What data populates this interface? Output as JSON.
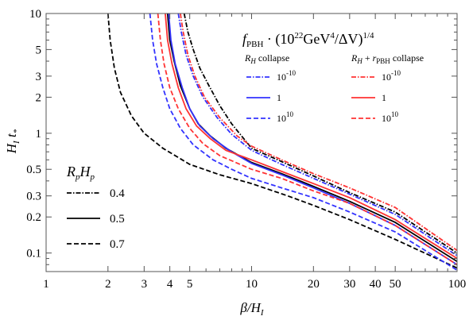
{
  "chart_data": {
    "type": "line",
    "xlabel": "β/H_I",
    "ylabel": "H_I t_*",
    "xscale": "log",
    "yscale": "log",
    "xlim": [
      1,
      100
    ],
    "ylim": [
      0.07,
      10
    ],
    "grid": false,
    "x_ticks": [
      1,
      2,
      3,
      4,
      5,
      10,
      20,
      30,
      40,
      50,
      100
    ],
    "x_tick_labels": [
      "1",
      "2",
      "3",
      "4",
      "5",
      "10",
      "20",
      "30",
      "40",
      "50",
      "100"
    ],
    "y_ticks": [
      10,
      5,
      3,
      2,
      1,
      0.5,
      0.3,
      0.2,
      0.1
    ],
    "y_tick_labels": [
      "10",
      "5",
      "3",
      "2",
      "1",
      "0.5",
      "0.3",
      "0.2",
      "0.1"
    ],
    "legend_top": {
      "title": "f_PBH · (10^22 GeV^4/ΔV)^1/4",
      "col1_header": "R_H collapse",
      "col2_header": "R_H + r_PBH collapse",
      "rows": [
        "10^-10",
        "1",
        "10^10"
      ]
    },
    "legend_left": {
      "title": "R_p H_p",
      "entries": [
        "0.4",
        "0.5",
        "0.7"
      ]
    },
    "series": [
      {
        "color": "#000000",
        "dash": "dashdot",
        "x": [
          4.7,
          4.9,
          5.2,
          5.6,
          6.2,
          7.0,
          8.0,
          10,
          14,
          20,
          30,
          50,
          100
        ],
        "y": [
          10,
          7,
          5,
          3.5,
          2.5,
          1.7,
          1.2,
          0.75,
          0.58,
          0.44,
          0.32,
          0.22,
          0.1
        ]
      },
      {
        "color": "#000000",
        "dash": "solid",
        "x": [
          3.9,
          4.0,
          4.2,
          4.5,
          5.0,
          5.5,
          6.3,
          7.5,
          10,
          14,
          20,
          30,
          50,
          100
        ],
        "y": [
          10,
          6,
          4,
          2.5,
          1.6,
          1.2,
          0.95,
          0.75,
          0.57,
          0.46,
          0.36,
          0.27,
          0.18,
          0.085
        ]
      },
      {
        "color": "#000000",
        "dash": "dashed",
        "x": [
          2.0,
          2.05,
          2.15,
          2.3,
          2.6,
          3.0,
          3.7,
          5.0,
          7.0,
          10,
          15,
          20,
          30,
          50,
          100
        ],
        "y": [
          10,
          6,
          3.5,
          2.2,
          1.4,
          1.0,
          0.75,
          0.55,
          0.45,
          0.38,
          0.3,
          0.25,
          0.19,
          0.13,
          0.075
        ]
      },
      {
        "color": "#3333ff",
        "dash": "dashdot",
        "x": [
          4.4,
          4.55,
          4.8,
          5.2,
          5.8,
          6.8,
          8.0,
          10,
          14,
          20,
          30,
          50,
          100
        ],
        "y": [
          10,
          7,
          4.5,
          3.0,
          2.0,
          1.35,
          0.98,
          0.72,
          0.55,
          0.42,
          0.31,
          0.21,
          0.095
        ]
      },
      {
        "color": "#3333ff",
        "dash": "solid",
        "x": [
          3.95,
          4.05,
          4.25,
          4.6,
          5.0,
          5.6,
          6.5,
          8.0,
          10,
          14,
          20,
          30,
          50,
          100
        ],
        "y": [
          10,
          6,
          3.8,
          2.4,
          1.6,
          1.15,
          0.9,
          0.7,
          0.56,
          0.45,
          0.35,
          0.26,
          0.17,
          0.08
        ]
      },
      {
        "color": "#3333ff",
        "dash": "dashed",
        "x": [
          3.2,
          3.3,
          3.45,
          3.7,
          4.0,
          4.5,
          5.2,
          6.5,
          8.0,
          10,
          14,
          20,
          30,
          50,
          100
        ],
        "y": [
          10,
          6,
          3.8,
          2.4,
          1.6,
          1.1,
          0.8,
          0.6,
          0.5,
          0.42,
          0.35,
          0.29,
          0.22,
          0.15,
          0.072
        ]
      },
      {
        "color": "#ff3333",
        "dash": "dashdot",
        "x": [
          4.5,
          4.65,
          4.9,
          5.3,
          5.9,
          7.0,
          8.5,
          10,
          14,
          20,
          30,
          50,
          100
        ],
        "y": [
          10,
          7,
          4.5,
          3.0,
          2.0,
          1.35,
          0.95,
          0.78,
          0.6,
          0.46,
          0.35,
          0.24,
          0.105
        ]
      },
      {
        "color": "#ff3333",
        "dash": "solid",
        "x": [
          3.8,
          3.9,
          4.1,
          4.4,
          4.8,
          5.4,
          6.3,
          7.5,
          10,
          14,
          20,
          30,
          50,
          100
        ],
        "y": [
          10,
          6,
          3.8,
          2.4,
          1.6,
          1.15,
          0.9,
          0.72,
          0.6,
          0.48,
          0.38,
          0.29,
          0.19,
          0.09
        ]
      },
      {
        "color": "#ff3333",
        "dash": "dashed",
        "x": [
          3.5,
          3.6,
          3.75,
          4.0,
          4.4,
          5.0,
          5.8,
          7.0,
          10,
          14,
          20,
          30,
          50,
          100
        ],
        "y": [
          10,
          6,
          3.8,
          2.4,
          1.6,
          1.1,
          0.82,
          0.65,
          0.5,
          0.42,
          0.33,
          0.26,
          0.17,
          0.08
        ]
      }
    ]
  }
}
